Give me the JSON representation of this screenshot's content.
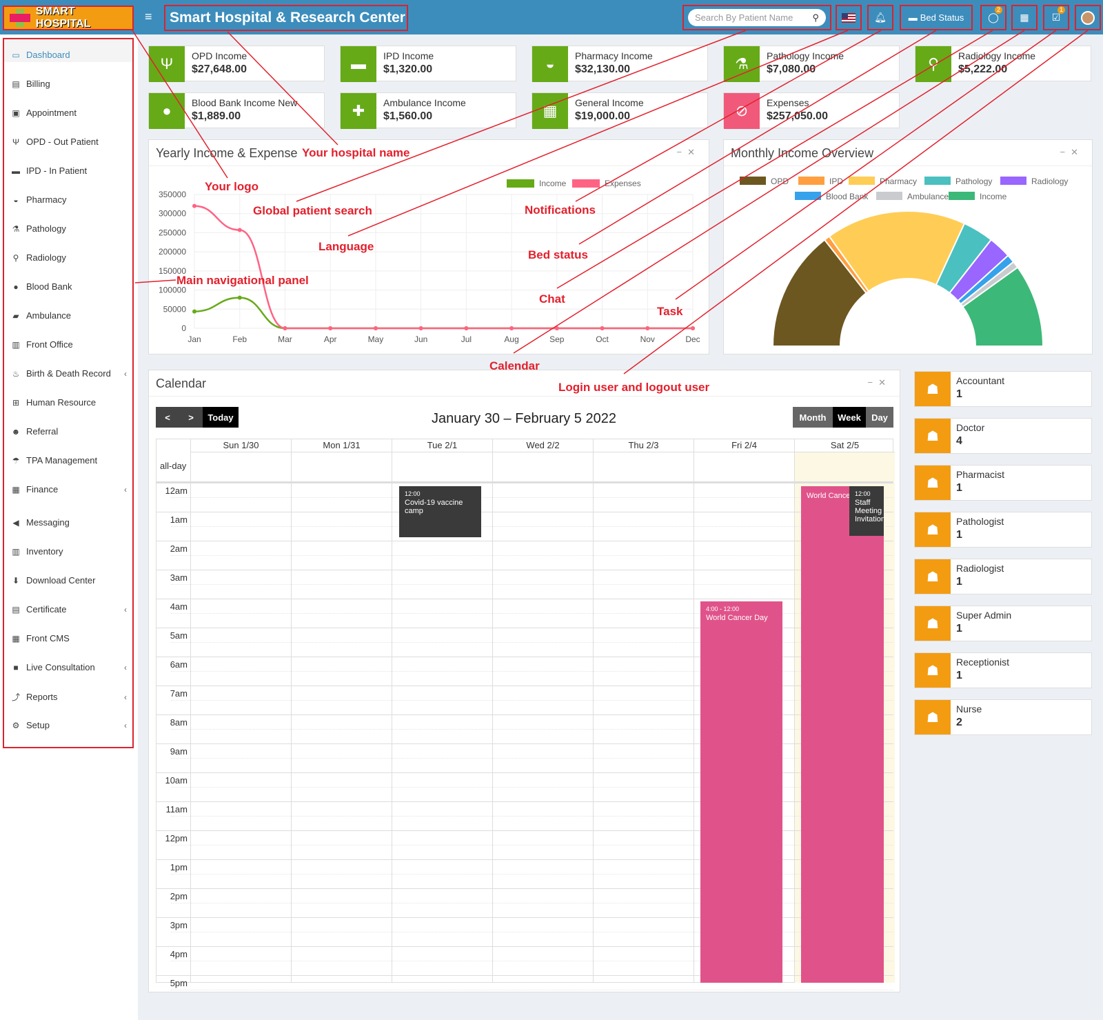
{
  "header": {
    "logo_text": "SMART HOSPITAL",
    "hospital_name": "Smart Hospital & Research Center",
    "search_placeholder": "Search By Patient Name",
    "bed_status_label": "Bed Status",
    "chat_badge": "2",
    "task_badge": "1"
  },
  "sidebar": {
    "items": [
      {
        "label": "Dashboard",
        "icon": "monitor-icon"
      },
      {
        "label": "Billing",
        "icon": "billing-icon"
      },
      {
        "label": "Appointment",
        "icon": "calendar-check-icon"
      },
      {
        "label": "OPD - Out Patient",
        "icon": "stethoscope-icon"
      },
      {
        "label": "IPD - In Patient",
        "icon": "bed-icon"
      },
      {
        "label": "Pharmacy",
        "icon": "mortar-icon"
      },
      {
        "label": "Pathology",
        "icon": "flask-icon"
      },
      {
        "label": "Radiology",
        "icon": "microscope-icon"
      },
      {
        "label": "Blood Bank",
        "icon": "tint-icon"
      },
      {
        "label": "Ambulance",
        "icon": "ambulance-icon"
      },
      {
        "label": "Front Office",
        "icon": "front-office-icon"
      },
      {
        "label": "Birth & Death Record",
        "icon": "birth-icon"
      },
      {
        "label": "Human Resource",
        "icon": "sitemap-icon"
      },
      {
        "label": "Referral",
        "icon": "users-icon"
      },
      {
        "label": "TPA Management",
        "icon": "umbrella-icon"
      },
      {
        "label": "Finance",
        "icon": "money-icon"
      },
      {
        "label": "Messaging",
        "icon": "bullhorn-icon"
      },
      {
        "label": "Inventory",
        "icon": "inventory-icon"
      },
      {
        "label": "Download Center",
        "icon": "download-icon"
      },
      {
        "label": "Certificate",
        "icon": "certificate-icon"
      },
      {
        "label": "Front CMS",
        "icon": "globe-icon"
      },
      {
        "label": "Live Consultation",
        "icon": "video-icon"
      },
      {
        "label": "Reports",
        "icon": "line-chart-icon"
      },
      {
        "label": "Setup",
        "icon": "gears-icon"
      }
    ]
  },
  "income_cards": [
    {
      "label": "OPD Income",
      "value": "$27,648.00",
      "color": "#66aa18"
    },
    {
      "label": "IPD Income",
      "value": "$1,320.00",
      "color": "#66aa18"
    },
    {
      "label": "Pharmacy Income",
      "value": "$32,130.00",
      "color": "#66aa18"
    },
    {
      "label": "Pathology Income",
      "value": "$7,080.00",
      "color": "#66aa18"
    },
    {
      "label": "Radiology Income",
      "value": "$5,222.00",
      "color": "#66aa18"
    },
    {
      "label": "Blood Bank Income New",
      "value": "$1,889.00",
      "color": "#66aa18"
    },
    {
      "label": "Ambulance Income",
      "value": "$1,560.00",
      "color": "#66aa18"
    },
    {
      "label": "General Income",
      "value": "$19,000.00",
      "color": "#66aa18"
    },
    {
      "label": "Expenses",
      "value": "$257,050.00",
      "color": "#f1597a"
    }
  ],
  "yearly_panel": {
    "title": "Yearly Income & Expense"
  },
  "monthly_panel": {
    "title": "Monthly Income Overview"
  },
  "chart_data": [
    {
      "type": "line",
      "title": "Yearly Income & Expense",
      "categories": [
        "Jan",
        "Feb",
        "Mar",
        "Apr",
        "May",
        "Jun",
        "Jul",
        "Aug",
        "Sep",
        "Oct",
        "Nov",
        "Dec"
      ],
      "series": [
        {
          "name": "Income",
          "color": "#66aa18",
          "values": [
            44000,
            80000,
            0,
            0,
            0,
            0,
            0,
            0,
            0,
            0,
            0,
            0
          ]
        },
        {
          "name": "Expenses",
          "color": "#ff6384",
          "values": [
            320000,
            257050,
            0,
            0,
            0,
            0,
            0,
            0,
            0,
            0,
            0,
            0
          ]
        }
      ],
      "y_ticks": [
        "0",
        "50000",
        "100000",
        "150000",
        "200000",
        "250000",
        "300000",
        "350000"
      ],
      "ylim": [
        0,
        350000
      ],
      "legend": "top",
      "grid": true
    },
    {
      "type": "pie",
      "title": "Monthly Income Overview",
      "style": "half-doughnut",
      "legend": "top",
      "slices": [
        {
          "name": "OPD",
          "color": "#6d5720",
          "value": 27648
        },
        {
          "name": "IPD",
          "color": "#ff9f40",
          "value": 1320
        },
        {
          "name": "Pharmacy",
          "color": "#ffcd56",
          "value": 32130
        },
        {
          "name": "Pathology",
          "color": "#4bc0c0",
          "value": 7080
        },
        {
          "name": "Radiology",
          "color": "#9966ff",
          "value": 5222
        },
        {
          "name": "Blood Bank",
          "color": "#36a2eb",
          "value": 1889
        },
        {
          "name": "Ambulance",
          "color": "#c9cbcf",
          "value": 1560
        },
        {
          "name": "Income",
          "color": "#3cb878",
          "value": 19000
        }
      ]
    }
  ],
  "calendar": {
    "title": "Calendar",
    "today_label": "Today",
    "range_title": "January 30 – February 5 2022",
    "views": [
      "Month",
      "Week",
      "Day"
    ],
    "days": [
      "Sun 1/30",
      "Mon 1/31",
      "Tue 2/1",
      "Wed 2/2",
      "Thu 2/3",
      "Fri 2/4",
      "Sat 2/5"
    ],
    "allday_label": "all-day",
    "hours": [
      "12am",
      "1am",
      "2am",
      "3am",
      "4am",
      "5am",
      "6am",
      "7am",
      "8am",
      "9am",
      "10am",
      "11am",
      "12pm",
      "1pm",
      "2pm",
      "3pm",
      "4pm",
      "5pm"
    ],
    "events": [
      {
        "time": "12:00",
        "title": "Covid-19 vaccine camp"
      },
      {
        "time": "4:00 - 12:00",
        "title": "World Cancer Day"
      },
      {
        "time": "",
        "title": "World Cancer Day"
      },
      {
        "time": "12:00",
        "title": "Staff Meeting Invitation"
      }
    ]
  },
  "staff": [
    {
      "role": "Accountant",
      "count": "1"
    },
    {
      "role": "Doctor",
      "count": "4"
    },
    {
      "role": "Pharmacist",
      "count": "1"
    },
    {
      "role": "Pathologist",
      "count": "1"
    },
    {
      "role": "Radiologist",
      "count": "1"
    },
    {
      "role": "Super Admin",
      "count": "1"
    },
    {
      "role": "Receptionist",
      "count": "1"
    },
    {
      "role": "Nurse",
      "count": "2"
    }
  ],
  "annotations": {
    "your_logo": "Your logo",
    "hospital_name": "Your hospital name",
    "global_search": "Global patient search",
    "language": "Language",
    "notifications": "Notifications",
    "bed_status": "Bed status",
    "chat": "Chat",
    "task": "Task",
    "calendar": "Calendar",
    "login_user": "Login user and logout user",
    "main_nav": "Main navigational panel"
  }
}
